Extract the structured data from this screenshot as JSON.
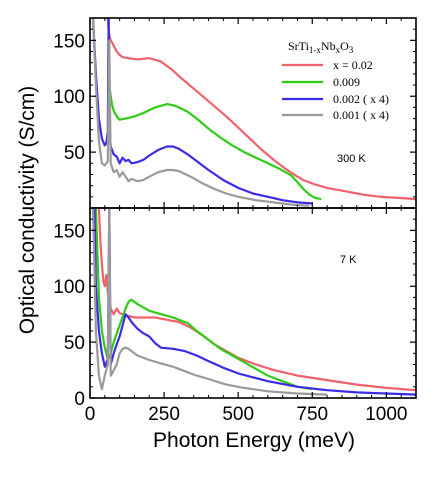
{
  "figure": {
    "ylabel": "Optical conductivity (S/cm)",
    "xlabel": "Photon Energy (meV)"
  },
  "legend": {
    "title_main": "SrTi",
    "title_sub1": "1-x",
    "title_mid1": "Nb",
    "title_sub2": "x",
    "title_mid2": "O",
    "title_sub3": "3",
    "entries": [
      {
        "label": "x = 0.02",
        "color": "#f0616b"
      },
      {
        "label": "0.009",
        "color": "#2ecc14"
      },
      {
        "label": "0.002  ( x 4)",
        "color": "#3a2be6"
      },
      {
        "label": "0.001  ( x 4)",
        "color": "#9a9a9a"
      }
    ]
  },
  "chart_data": [
    {
      "type": "line",
      "panel_label": "300 K",
      "xlim": [
        0,
        1100
      ],
      "ylim": [
        0,
        170
      ],
      "x_ticks": [
        0,
        250,
        500,
        750,
        1000
      ],
      "x_tick_labels": [
        "0",
        "250",
        "500",
        "750",
        "1000"
      ],
      "y_ticks": [
        0,
        50,
        100,
        150
      ],
      "y_tick_labels": [
        "0",
        "50",
        "100",
        "150"
      ],
      "series": [
        {
          "name": "x = 0.02",
          "color": "#f0616b",
          "x": [
            60,
            62,
            65,
            70,
            75,
            80,
            90,
            100,
            110,
            130,
            160,
            200,
            240,
            280,
            300,
            340,
            380,
            420,
            460,
            500,
            540,
            580,
            620,
            660,
            700,
            720,
            760,
            800,
            860,
            920,
            980,
            1040,
            1100
          ],
          "y": [
            170,
            160,
            155,
            150,
            148,
            145,
            140,
            137,
            135,
            134,
            133,
            134,
            131,
            123,
            118,
            109,
            100,
            91,
            82,
            72,
            62,
            52,
            43,
            35,
            28,
            25,
            21,
            18,
            15,
            12,
            10,
            9,
            8
          ]
        },
        {
          "name": "0.009",
          "color": "#2ecc14",
          "x": [
            62,
            65,
            70,
            75,
            80,
            90,
            100,
            120,
            150,
            180,
            220,
            260,
            280,
            300,
            330,
            360,
            400,
            440,
            480,
            520,
            560,
            600,
            640,
            680,
            700,
            720,
            740,
            760,
            780
          ],
          "y": [
            120,
            110,
            100,
            92,
            87,
            82,
            79,
            80,
            82,
            85,
            90,
            93,
            92,
            90,
            86,
            80,
            71,
            63,
            56,
            50,
            45,
            40,
            35,
            29,
            23,
            17,
            12,
            9,
            8
          ]
        },
        {
          "name": "0.002  ( x 4)",
          "color": "#3a2be6",
          "x": [
            10,
            20,
            30,
            40,
            50,
            55,
            60,
            63,
            66,
            70,
            80,
            90,
            100,
            110,
            120,
            130,
            140,
            160,
            180,
            200,
            230,
            260,
            280,
            300,
            330,
            360,
            400,
            450,
            500,
            550,
            600,
            650,
            700,
            750
          ],
          "y": [
            170,
            120,
            80,
            62,
            56,
            58,
            68,
            170,
            70,
            55,
            48,
            46,
            40,
            45,
            42,
            43,
            40,
            41,
            43,
            47,
            52,
            55,
            55,
            53,
            48,
            42,
            34,
            25,
            18,
            13,
            10,
            7,
            5,
            4
          ]
        },
        {
          "name": "0.001  ( x 4)",
          "color": "#9a9a9a",
          "x": [
            10,
            20,
            30,
            40,
            50,
            60,
            65,
            70,
            80,
            90,
            100,
            110,
            120,
            130,
            140,
            160,
            180,
            200,
            230,
            260,
            280,
            300,
            340,
            380,
            420,
            460,
            500,
            560,
            620,
            680,
            740
          ],
          "y": [
            170,
            110,
            60,
            40,
            38,
            42,
            150,
            40,
            32,
            34,
            28,
            32,
            28,
            24,
            26,
            24,
            25,
            28,
            32,
            34,
            34,
            33,
            28,
            22,
            17,
            13,
            10,
            7,
            5,
            3,
            2
          ]
        }
      ]
    },
    {
      "type": "line",
      "panel_label": "7 K",
      "xlim": [
        0,
        1100
      ],
      "ylim": [
        0,
        170
      ],
      "x_ticks": [
        0,
        250,
        500,
        750,
        1000
      ],
      "x_tick_labels": [
        "0",
        "250",
        "500",
        "750",
        "1000"
      ],
      "y_ticks": [
        0,
        50,
        100,
        150
      ],
      "y_tick_labels": [
        "0",
        "50",
        "100",
        "150"
      ],
      "series": [
        {
          "name": "x = 0.02",
          "color": "#f0616b",
          "x": [
            30,
            35,
            40,
            45,
            50,
            55,
            60,
            70,
            80,
            90,
            100,
            120,
            150,
            180,
            220,
            260,
            300,
            340,
            380,
            420,
            460,
            500,
            560,
            620,
            700,
            800,
            900,
            1000,
            1100
          ],
          "y": [
            170,
            140,
            120,
            105,
            100,
            110,
            95,
            80,
            75,
            80,
            76,
            74,
            72,
            72,
            72,
            70,
            68,
            63,
            56,
            48,
            42,
            36,
            30,
            25,
            20,
            16,
            12,
            9,
            7
          ]
        },
        {
          "name": "0.009",
          "color": "#2ecc14",
          "x": [
            20,
            30,
            40,
            50,
            60,
            70,
            80,
            100,
            120,
            130,
            140,
            160,
            200,
            240,
            280,
            300,
            330,
            360,
            400,
            440,
            480,
            520,
            560,
            600,
            650,
            700,
            750
          ],
          "y": [
            170,
            90,
            60,
            45,
            35,
            40,
            50,
            65,
            80,
            86,
            88,
            84,
            78,
            75,
            72,
            70,
            67,
            60,
            52,
            44,
            38,
            32,
            26,
            20,
            15,
            10,
            8
          ]
        },
        {
          "name": "0.002  ( x 4)",
          "color": "#3a2be6",
          "x": [
            15,
            20,
            30,
            40,
            50,
            60,
            65,
            70,
            80,
            90,
            100,
            110,
            120,
            130,
            140,
            160,
            180,
            200,
            220,
            240,
            280,
            320,
            360,
            400,
            450,
            500,
            600,
            700,
            800,
            900,
            1000,
            1100
          ],
          "y": [
            170,
            100,
            60,
            40,
            28,
            35,
            170,
            30,
            40,
            48,
            55,
            65,
            75,
            72,
            68,
            62,
            58,
            55,
            49,
            45,
            44,
            42,
            38,
            33,
            27,
            22,
            15,
            10,
            7,
            5,
            4,
            3
          ]
        },
        {
          "name": "0.001  ( x 4)",
          "color": "#9a9a9a",
          "x": [
            10,
            20,
            30,
            40,
            50,
            55,
            60,
            65,
            70,
            75,
            80,
            90,
            100,
            110,
            120,
            130,
            140,
            160,
            200,
            240,
            280,
            320,
            360,
            400,
            460,
            520,
            600,
            700,
            800
          ],
          "y": [
            170,
            60,
            20,
            8,
            20,
            25,
            30,
            170,
            20,
            22,
            25,
            30,
            40,
            44,
            45,
            44,
            42,
            38,
            34,
            31,
            28,
            24,
            20,
            17,
            12,
            9,
            6,
            4,
            3
          ]
        }
      ]
    }
  ]
}
